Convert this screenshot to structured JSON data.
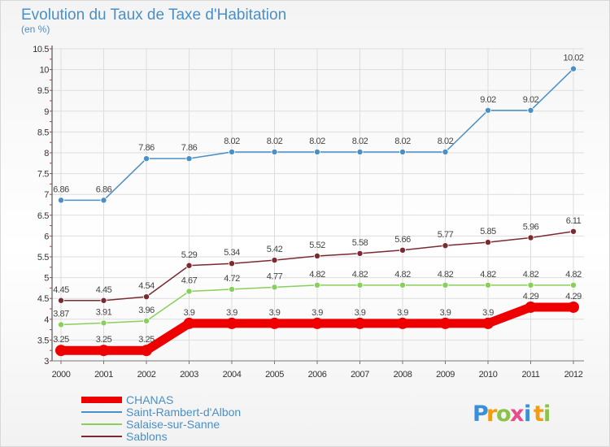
{
  "chart_data": {
    "type": "line",
    "title": "Evolution du Taux de Taxe d'Habitation",
    "subtitle": "(en %)",
    "x": [
      "2000",
      "2001",
      "2002",
      "2003",
      "2004",
      "2005",
      "2006",
      "2007",
      "2008",
      "2009",
      "2010",
      "2011",
      "2012"
    ],
    "ylim": [
      3,
      10.5
    ],
    "yticks": [
      "3",
      "3.5",
      "4",
      "4.5",
      "5",
      "5.5",
      "6",
      "6.5",
      "7",
      "7.5",
      "8",
      "8.5",
      "9",
      "9.5",
      "10",
      "10.5"
    ],
    "grid": true,
    "legend_position": "bottom-left",
    "series": [
      {
        "name": "CHANAS",
        "color": "#ee0000",
        "values": [
          3.25,
          3.25,
          3.25,
          3.9,
          3.9,
          3.9,
          3.9,
          3.9,
          3.9,
          3.9,
          3.9,
          4.29,
          4.29
        ],
        "labels": [
          "3.25",
          "3.25",
          "3.25",
          "3.9",
          "3.9",
          "3.9",
          "3.9",
          "3.9",
          "3.9",
          "3.9",
          "3.9",
          "4.29",
          "4.29"
        ]
      },
      {
        "name": "Saint-Rambert-d'Albon",
        "color": "#4a8fc6",
        "values": [
          6.86,
          6.86,
          7.86,
          7.86,
          8.02,
          8.02,
          8.02,
          8.02,
          8.02,
          8.02,
          9.02,
          9.02,
          10.02
        ],
        "labels": [
          "6.86",
          "6.86",
          "7.86",
          "7.86",
          "8.02",
          "8.02",
          "8.02",
          "8.02",
          "8.02",
          "8.02",
          "9.02",
          "9.02",
          "10.02"
        ]
      },
      {
        "name": "Salaise-sur-Sanne",
        "color": "#88d05a",
        "values": [
          3.87,
          3.91,
          3.96,
          4.67,
          4.72,
          4.77,
          4.82,
          4.82,
          4.82,
          4.82,
          4.82,
          4.82,
          4.82
        ],
        "labels": [
          "3.87",
          "3.91",
          "3.96",
          "4.67",
          "4.72",
          "4.77",
          "4.82",
          "4.82",
          "4.82",
          "4.82",
          "4.82",
          "4.82",
          "4.82"
        ]
      },
      {
        "name": "Sablons",
        "color": "#7a2a30",
        "values": [
          4.45,
          4.45,
          4.54,
          5.29,
          5.34,
          5.42,
          5.52,
          5.58,
          5.66,
          5.77,
          5.85,
          5.96,
          6.11
        ],
        "labels": [
          "4.45",
          "4.45",
          "4.54",
          "5.29",
          "5.34",
          "5.42",
          "5.52",
          "5.58",
          "5.66",
          "5.77",
          "5.85",
          "5.96",
          "6.11"
        ]
      }
    ]
  },
  "logo": {
    "text": "Proxiti",
    "letters": [
      {
        "ch": "P",
        "color": "#3a8fd8"
      },
      {
        "ch": "r",
        "color": "#f39c12"
      },
      {
        "ch": "o",
        "color": "#8bc34a"
      },
      {
        "ch": "x",
        "color": "#e84c8b"
      },
      {
        "ch": "i",
        "color": "#3a8fd8"
      },
      {
        "ch": "t",
        "color": "#f39c12"
      },
      {
        "ch": "i",
        "color": "#8bc34a"
      }
    ]
  }
}
